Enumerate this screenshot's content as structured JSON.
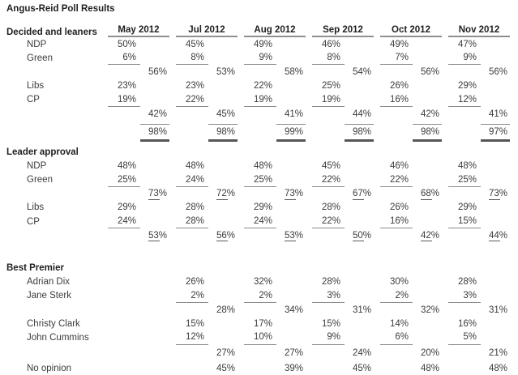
{
  "title": "Angus-Reid Poll Results",
  "months": [
    "May 2012",
    "Jul 2012",
    "Aug 2012",
    "Sep 2012",
    "Oct 2012",
    "Nov 2012"
  ],
  "table": {
    "rows": [
      {
        "type": "header",
        "label": "Decided and leaners"
      },
      {
        "type": "party",
        "label": "NDP",
        "values": [
          "50%",
          "45%",
          "49%",
          "46%",
          "49%",
          "47%"
        ],
        "underline": false
      },
      {
        "type": "party",
        "label": "Green",
        "values": [
          "6%",
          "8%",
          "9%",
          "8%",
          "7%",
          "9%"
        ],
        "underline": true
      },
      {
        "type": "subtotal",
        "label": "",
        "values": [
          "56%",
          "53%",
          "58%",
          "54%",
          "56%",
          "56%"
        ],
        "style": "plain"
      },
      {
        "type": "party",
        "label": "Libs",
        "values": [
          "23%",
          "23%",
          "22%",
          "25%",
          "26%",
          "29%"
        ],
        "underline": false
      },
      {
        "type": "party",
        "label": "CP",
        "values": [
          "19%",
          "22%",
          "19%",
          "19%",
          "16%",
          "12%"
        ],
        "underline": true
      },
      {
        "type": "subtotal",
        "label": "",
        "values": [
          "42%",
          "45%",
          "41%",
          "44%",
          "42%",
          "41%"
        ],
        "style": "plain"
      },
      {
        "type": "total",
        "label": "",
        "values": [
          "98%",
          "98%",
          "99%",
          "98%",
          "98%",
          "97%"
        ]
      },
      {
        "type": "spacer",
        "h": 4
      },
      {
        "type": "section",
        "label": "Leader approval"
      },
      {
        "type": "party",
        "label": "NDP",
        "values": [
          "48%",
          "48%",
          "48%",
          "45%",
          "46%",
          "48%"
        ],
        "underline": false
      },
      {
        "type": "party",
        "label": "Green",
        "values": [
          "25%",
          "24%",
          "25%",
          "22%",
          "22%",
          "25%"
        ],
        "underline": true
      },
      {
        "type": "subtotal",
        "label": "",
        "values": [
          "73%",
          "72%",
          "73%",
          "67%",
          "68%",
          "73%"
        ],
        "style": "dash"
      },
      {
        "type": "party",
        "label": "Libs",
        "values": [
          "29%",
          "28%",
          "29%",
          "28%",
          "26%",
          "29%"
        ],
        "underline": false
      },
      {
        "type": "party",
        "label": "CP",
        "values": [
          "24%",
          "28%",
          "24%",
          "22%",
          "16%",
          "15%"
        ],
        "underline": true
      },
      {
        "type": "subtotal",
        "label": "",
        "values": [
          "53%",
          "56%",
          "53%",
          "50%",
          "42%",
          "44%"
        ],
        "style": "dash"
      },
      {
        "type": "spacer",
        "h": 23
      },
      {
        "type": "section",
        "label": "Best Premier"
      },
      {
        "type": "party",
        "label": "Adrian Dix",
        "values": [
          "",
          "26%",
          "32%",
          "28%",
          "30%",
          "28%"
        ],
        "underline": false
      },
      {
        "type": "party",
        "label": "Jane Sterk",
        "values": [
          "",
          "2%",
          "2%",
          "3%",
          "2%",
          "3%"
        ],
        "underline": true
      },
      {
        "type": "subtotal",
        "label": "",
        "values": [
          "",
          "28%",
          "34%",
          "31%",
          "32%",
          "31%"
        ],
        "style": "plain"
      },
      {
        "type": "party",
        "label": "Christy Clark",
        "values": [
          "",
          "15%",
          "17%",
          "15%",
          "14%",
          "16%"
        ],
        "underline": false
      },
      {
        "type": "party",
        "label": "John Cummins",
        "values": [
          "",
          "12%",
          "10%",
          "9%",
          "6%",
          "5%"
        ],
        "underline": true
      },
      {
        "type": "spacer",
        "h": 2
      },
      {
        "type": "subtotal",
        "label": "",
        "values": [
          "",
          "27%",
          "27%",
          "24%",
          "20%",
          "21%"
        ],
        "style": "plain"
      },
      {
        "type": "spacer",
        "h": 2
      },
      {
        "type": "subtotal",
        "label": "No opinion",
        "values": [
          "",
          "45%",
          "39%",
          "45%",
          "48%",
          "48%"
        ],
        "style": "plain"
      }
    ]
  },
  "colors": {
    "text": "#3c3c3c",
    "bold_text": "#1f1f1f",
    "rule_gray": "#8f8f8f",
    "total_rule_dark": "#565656",
    "background": "#ffffff"
  }
}
